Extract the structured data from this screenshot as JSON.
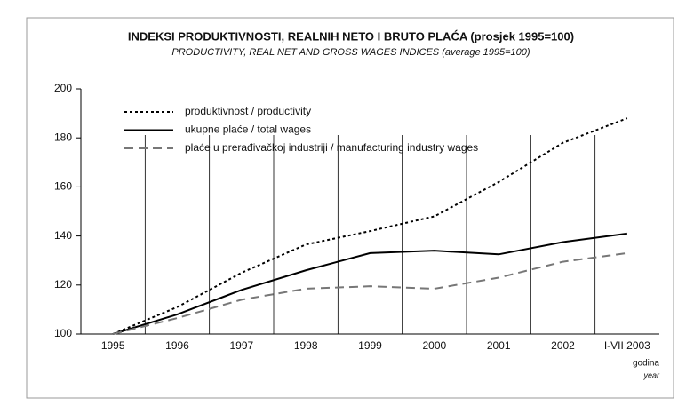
{
  "chart_data": {
    "type": "line",
    "title": "INDEKSI PRODUKTIVNOSTI, REALNIH NETO I BRUTO PLAĆA (prosjek 1995=100)",
    "subtitle": "PRODUCTIVITY, REAL NET AND GROSS WAGES INDICES (average 1995=100)",
    "x_label": "godina",
    "x_label_en": "year",
    "categories": [
      "1995",
      "1996",
      "1997",
      "1998",
      "1999",
      "2000",
      "2001",
      "2002",
      "I-VII 2003"
    ],
    "series": [
      {
        "name": "produktivnost / productivity",
        "color": "#000000",
        "dash": "dotted",
        "values": [
          100,
          111,
          125,
          136.5,
          142,
          148,
          162,
          178,
          188
        ]
      },
      {
        "name": "ukupne plaće / total wages",
        "color": "#000000",
        "dash": "solid",
        "values": [
          100,
          108,
          118,
          126,
          133,
          134,
          132.5,
          137.5,
          141
        ]
      },
      {
        "name": "plaće u prerađivačkoj industriji / manufacturing industry wages",
        "color": "#777777",
        "dash": "dashed",
        "values": [
          100,
          106.5,
          114,
          118.5,
          119.5,
          118.5,
          123,
          129.5,
          133
        ]
      }
    ],
    "ylim": [
      100,
      200
    ],
    "yticks": [
      100,
      120,
      140,
      160,
      180,
      200
    ]
  }
}
